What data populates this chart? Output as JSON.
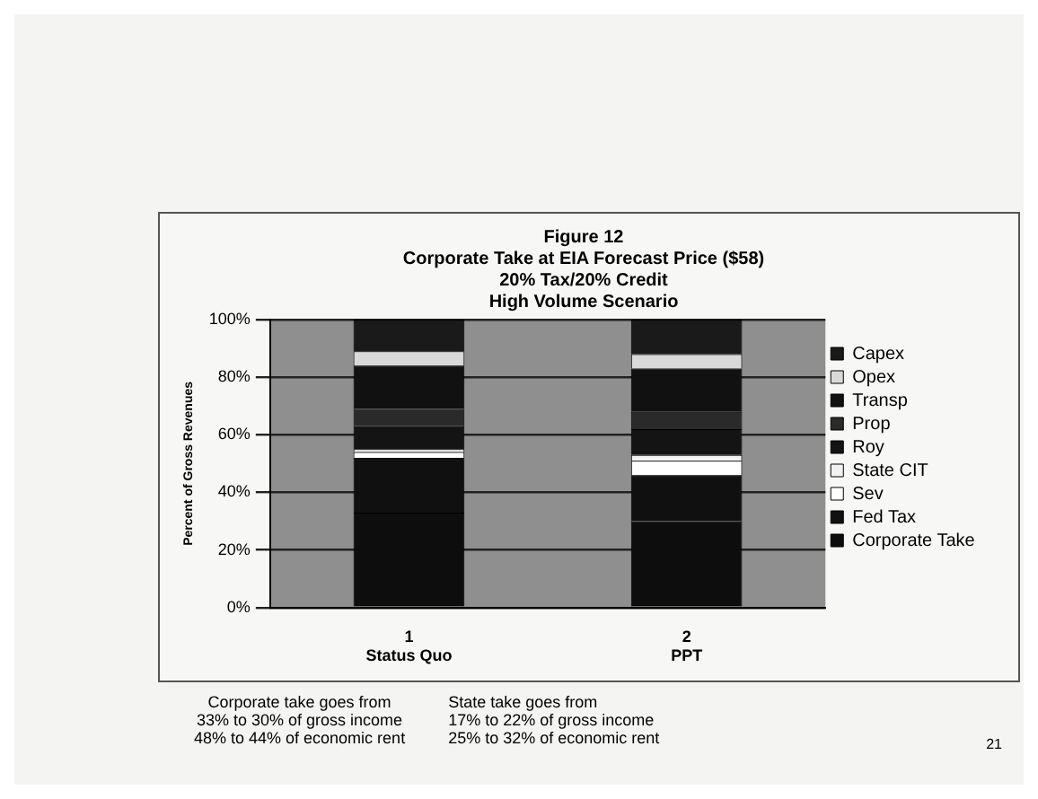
{
  "chart_data": {
    "type": "bar",
    "title": "Figure 12\nCorporate Take at EIA Forecast Price ($58)\n20% Tax/20% Credit\nHigh Volume Scenario",
    "ylabel": "Percent of Gross Revenues",
    "categories": [
      "1\nStatus Quo",
      "2\nPPT"
    ],
    "stacked": true,
    "ylim": [
      0,
      100
    ],
    "yticks": [
      {
        "value": 0,
        "label": "0%"
      },
      {
        "value": 20,
        "label": "20%"
      },
      {
        "value": 40,
        "label": "40%"
      },
      {
        "value": 60,
        "label": "60%"
      },
      {
        "value": 80,
        "label": "80%"
      },
      {
        "value": 100,
        "label": "100%"
      }
    ],
    "grid": "y",
    "legend": "right",
    "series": [
      {
        "name": "Corporate Take",
        "color": "#0d0d0d",
        "values": [
          33,
          30
        ]
      },
      {
        "name": "Fed Tax",
        "color": "#101010",
        "values": [
          19,
          16
        ]
      },
      {
        "name": "Sev",
        "color": "#ffffff",
        "values": [
          2,
          5
        ]
      },
      {
        "name": "State CIT",
        "color": "#f2f2f2",
        "values": [
          1,
          2
        ]
      },
      {
        "name": "Roy",
        "color": "#141414",
        "values": [
          8,
          9
        ]
      },
      {
        "name": "Prop",
        "color": "#2a2a2a",
        "values": [
          6,
          6
        ]
      },
      {
        "name": "Transp",
        "color": "#111111",
        "values": [
          15,
          15
        ]
      },
      {
        "name": "Opex",
        "color": "#d9d9d9",
        "values": [
          5,
          5
        ]
      },
      {
        "name": "Capex",
        "color": "#1a1a1a",
        "values": [
          11,
          12
        ]
      }
    ],
    "annotations": [
      "Corporate take goes from\n33% to 30% of gross income\n48% to 44% of economic rent",
      "State take goes from\n17% to 22% of gross income\n25% to 32% of economic rent",
      "21"
    ]
  }
}
